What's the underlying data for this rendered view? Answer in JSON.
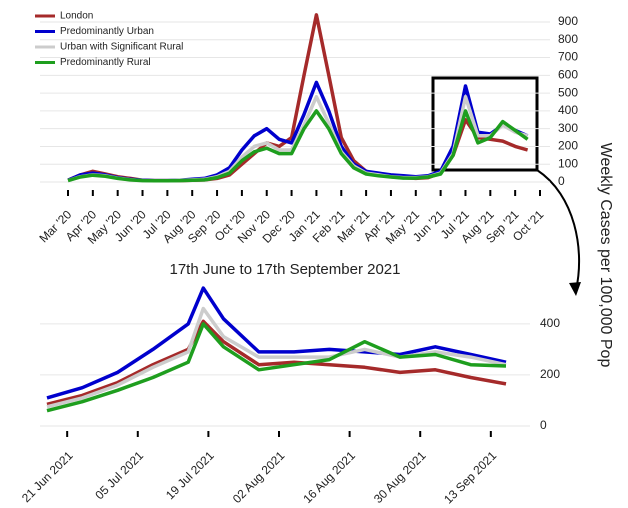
{
  "chart_data": [
    {
      "type": "line",
      "ylabel": "Weekly Cases per 100,000 Pop",
      "categories": [
        "Mar '20",
        null,
        "Apr '20",
        null,
        "May '20",
        null,
        "Jun '20",
        null,
        "Jul '20",
        null,
        "Aug '20",
        null,
        "Sep '20",
        null,
        "Oct '20",
        null,
        "Nov '20",
        null,
        "Dec '20",
        null,
        "Jan '21",
        null,
        "Feb '21",
        null,
        "Mar '21",
        null,
        "Apr '21",
        null,
        "May '21",
        null,
        "Jun '21",
        null,
        "Jul '21",
        null,
        "Aug '21",
        null,
        "Sep '21",
        null,
        "Oct '21",
        null
      ],
      "series": [
        {
          "name": "London",
          "color": "#a52a2a",
          "values": [
            10,
            40,
            60,
            45,
            30,
            20,
            10,
            8,
            8,
            8,
            10,
            12,
            20,
            40,
            100,
            160,
            220,
            200,
            250,
            600,
            940,
            600,
            250,
            120,
            60,
            40,
            30,
            25,
            20,
            25,
            50,
            150,
            350,
            250,
            240,
            230,
            200,
            180,
            null,
            null
          ]
        },
        {
          "name": "Predominantly Urban",
          "color": "#0000cd",
          "values": [
            10,
            40,
            50,
            40,
            25,
            15,
            10,
            8,
            8,
            10,
            15,
            20,
            40,
            80,
            180,
            260,
            300,
            240,
            220,
            380,
            560,
            400,
            200,
            100,
            60,
            50,
            40,
            35,
            30,
            35,
            60,
            200,
            540,
            280,
            270,
            320,
            290,
            260,
            null,
            null
          ]
        },
        {
          "name": "Urban with Significant Rural",
          "color": "#cccccc",
          "values": [
            8,
            30,
            40,
            35,
            22,
            13,
            8,
            7,
            7,
            9,
            12,
            15,
            30,
            60,
            140,
            200,
            220,
            180,
            180,
            320,
            480,
            330,
            170,
            90,
            50,
            40,
            30,
            25,
            25,
            30,
            50,
            160,
            480,
            260,
            260,
            320,
            280,
            260,
            null,
            null
          ]
        },
        {
          "name": "Predominantly Rural",
          "color": "#1e9e1e",
          "values": [
            8,
            28,
            38,
            32,
            20,
            12,
            8,
            7,
            7,
            8,
            10,
            12,
            25,
            50,
            120,
            170,
            190,
            160,
            160,
            300,
            400,
            300,
            160,
            80,
            45,
            35,
            28,
            22,
            22,
            28,
            45,
            150,
            400,
            220,
            250,
            340,
            290,
            240,
            null,
            null
          ]
        }
      ],
      "ylim": [
        0,
        900
      ],
      "yticks": [
        0,
        100,
        200,
        300,
        400,
        500,
        600,
        700,
        800,
        900
      ],
      "grid": true,
      "legend": "top-left"
    },
    {
      "type": "line",
      "title": "17th June to 17th September 2021",
      "x": [
        "2021-06-17",
        "2021-06-24",
        "2021-07-01",
        "2021-07-08",
        "2021-07-15",
        "2021-07-18",
        "2021-07-22",
        "2021-07-29",
        "2021-08-05",
        "2021-08-12",
        "2021-08-19",
        "2021-08-26",
        "2021-09-02",
        "2021-09-09",
        "2021-09-16"
      ],
      "series": [
        {
          "name": "London",
          "color": "#a52a2a",
          "values": [
            85,
            120,
            170,
            240,
            300,
            410,
            330,
            240,
            250,
            240,
            230,
            210,
            220,
            190,
            165
          ]
        },
        {
          "name": "Predominantly Urban",
          "color": "#0000cd",
          "values": [
            110,
            150,
            210,
            300,
            400,
            540,
            420,
            290,
            290,
            300,
            290,
            280,
            310,
            280,
            250
          ]
        },
        {
          "name": "Urban with Significant Rural",
          "color": "#cccccc",
          "values": [
            75,
            110,
            160,
            230,
            290,
            460,
            350,
            270,
            270,
            270,
            300,
            270,
            290,
            270,
            240
          ]
        },
        {
          "name": "Predominantly Rural",
          "color": "#1e9e1e",
          "values": [
            60,
            95,
            140,
            190,
            250,
            400,
            310,
            220,
            240,
            260,
            330,
            270,
            280,
            240,
            235
          ]
        }
      ],
      "xlim": [
        "2021-06-17",
        "2021-09-17"
      ],
      "xticks": [
        {
          "value": "2021-06-21",
          "label": "21 Jun 2021"
        },
        {
          "value": "2021-07-05",
          "label": "05 Jul 2021"
        },
        {
          "value": "2021-07-19",
          "label": "19 Jul 2021"
        },
        {
          "value": "2021-08-02",
          "label": "02 Aug 2021"
        },
        {
          "value": "2021-08-16",
          "label": "16 Aug 2021"
        },
        {
          "value": "2021-08-30",
          "label": "30 Aug 2021"
        },
        {
          "value": "2021-09-13",
          "label": "13 Sep 2021"
        }
      ],
      "ylim": [
        0,
        560
      ],
      "yticks": [
        0,
        200,
        400
      ],
      "grid": true
    }
  ]
}
